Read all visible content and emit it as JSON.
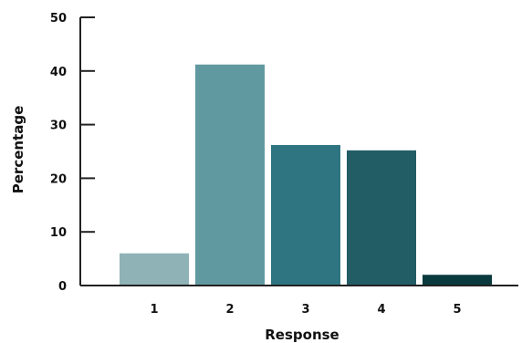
{
  "chart_data": {
    "type": "bar",
    "title": "",
    "xlabel": "Response",
    "ylabel": "Percentage",
    "categories": [
      "1",
      "2",
      "3",
      "4",
      "5"
    ],
    "values": [
      6,
      41.2,
      26.2,
      25.2,
      2
    ],
    "ylim": [
      0,
      50
    ],
    "yticks": [
      0,
      10,
      20,
      30,
      40,
      50
    ],
    "bar_colors": [
      "#8fb2b6",
      "#6199a0",
      "#2e7581",
      "#225d66",
      "#0b3a3e"
    ],
    "axis_color": "#222222",
    "grid": false,
    "legend": "none"
  }
}
